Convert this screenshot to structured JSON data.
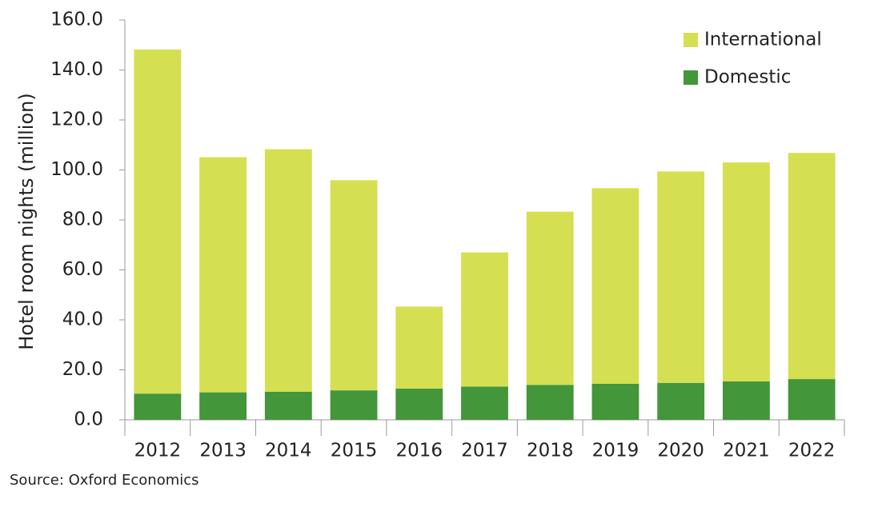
{
  "chart_data": {
    "type": "bar",
    "stacked": true,
    "categories": [
      "2012",
      "2013",
      "2014",
      "2015",
      "2016",
      "2017",
      "2018",
      "2019",
      "2020",
      "2021",
      "2022"
    ],
    "series": [
      {
        "name": "Domestic",
        "color": "#43963a",
        "values": [
          10.5,
          11.0,
          11.2,
          11.8,
          12.5,
          13.3,
          14.0,
          14.4,
          14.8,
          15.4,
          16.3
        ]
      },
      {
        "name": "International",
        "color": "#d5df52",
        "values": [
          137.7,
          94.1,
          97.1,
          84.1,
          32.8,
          53.7,
          69.3,
          78.3,
          84.6,
          87.6,
          90.5
        ]
      }
    ],
    "ylabel": "Hotel room nights (million)",
    "xlabel": "",
    "ylim": [
      0,
      160
    ],
    "yticks": [
      "0.0",
      "20.0",
      "40.0",
      "60.0",
      "80.0",
      "100.0",
      "120.0",
      "140.0",
      "160.0"
    ],
    "legend": {
      "position": "top-right",
      "entries": [
        "International",
        "Domestic"
      ]
    },
    "grid": false
  },
  "source_note": "Source: Oxford Economics"
}
